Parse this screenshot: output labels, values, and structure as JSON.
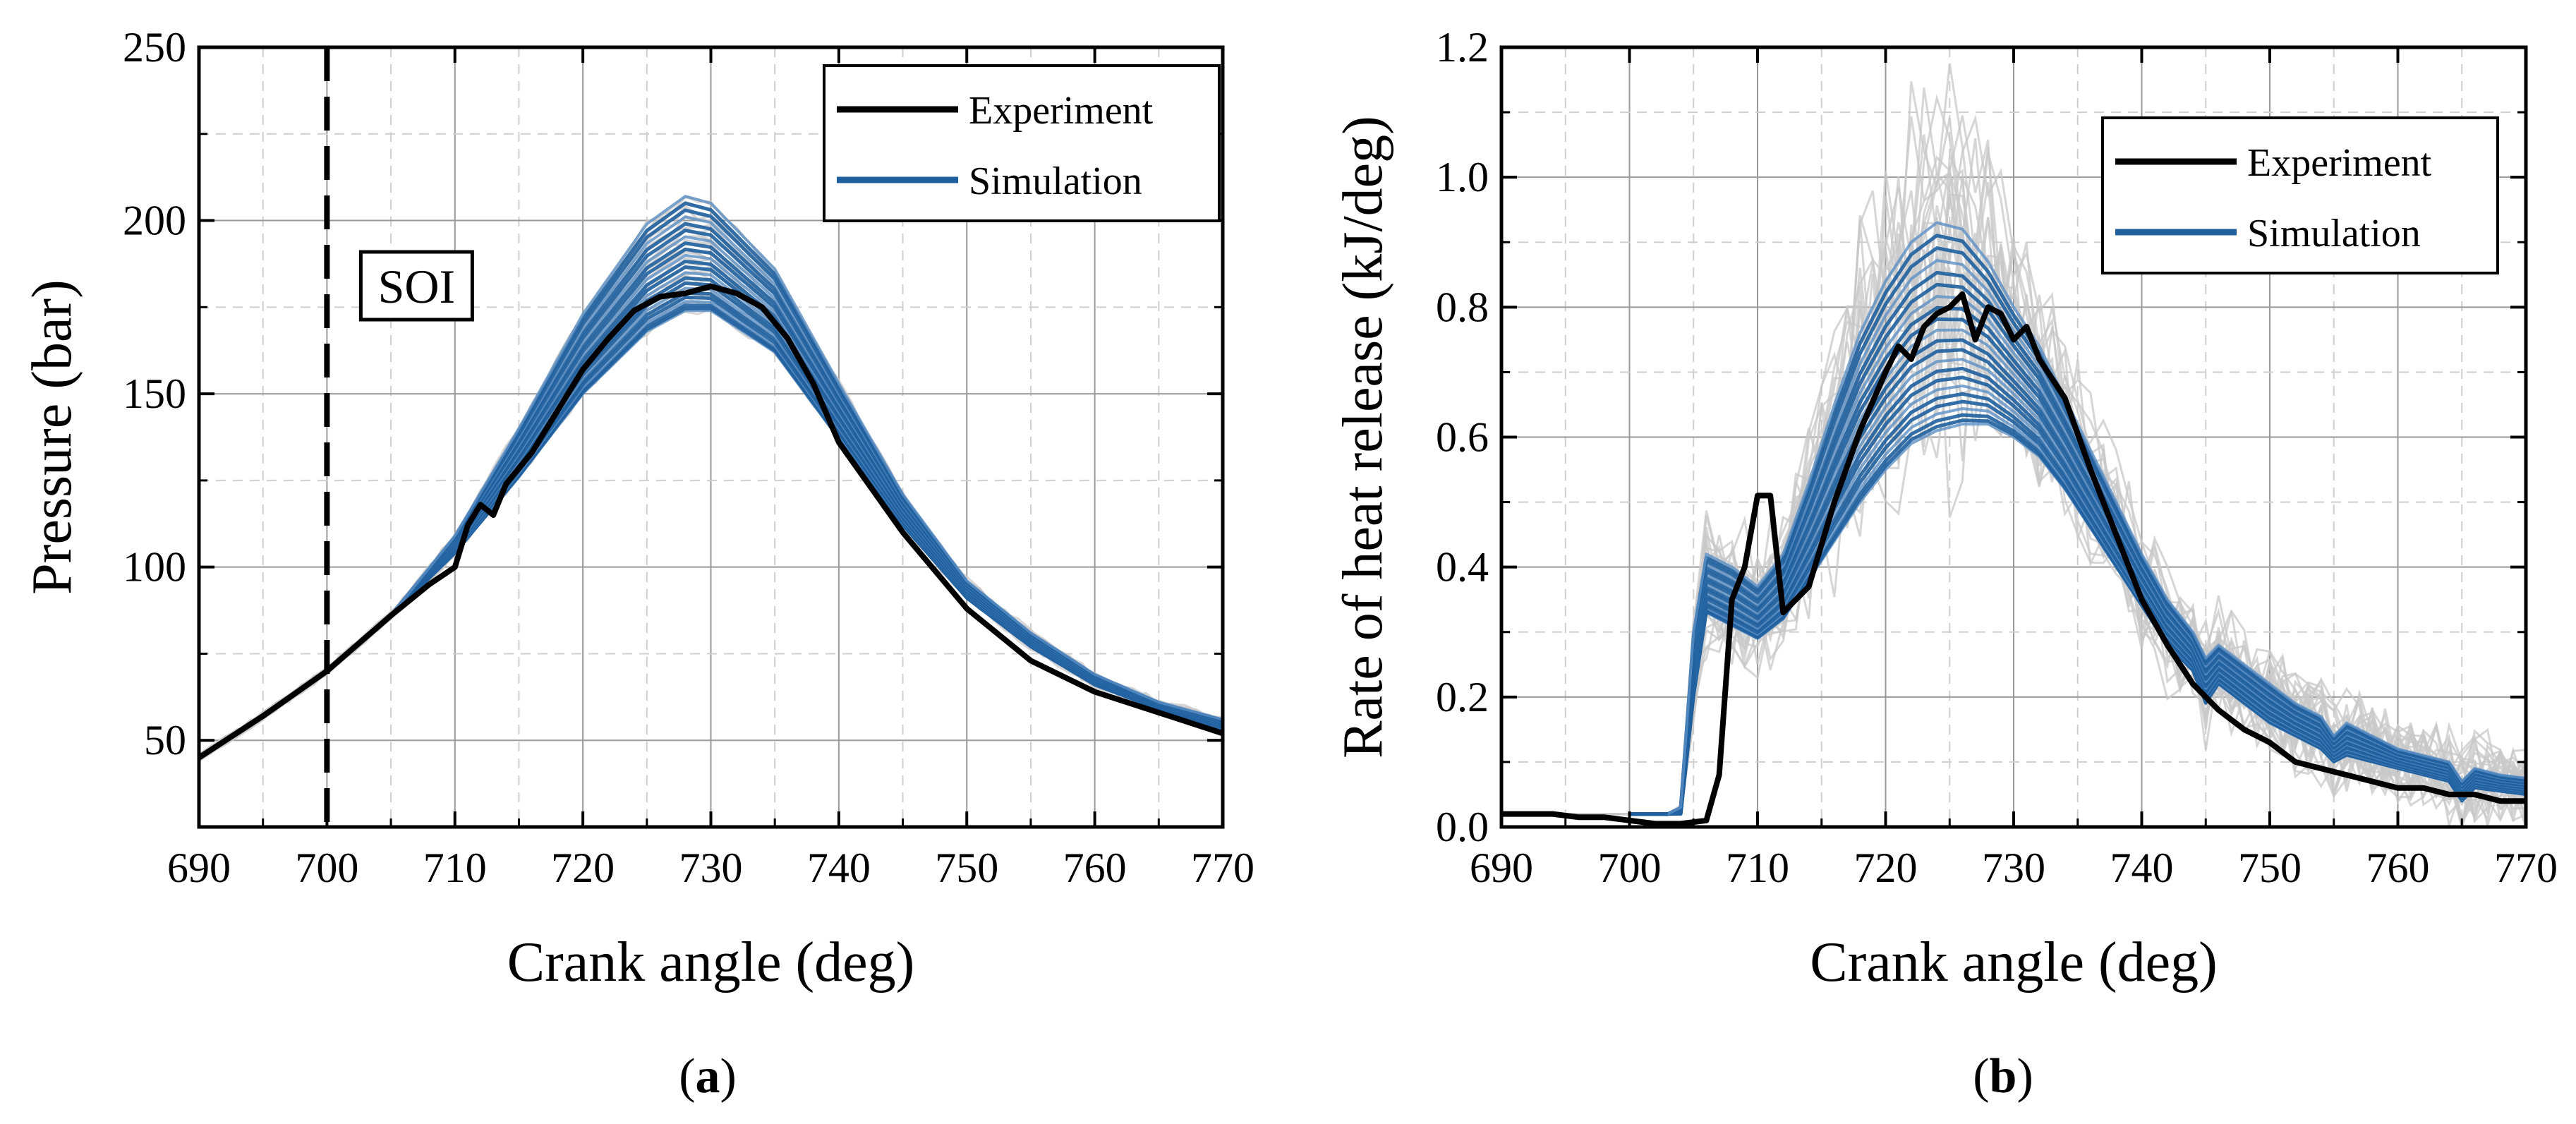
{
  "colors": {
    "experiment": "#000000",
    "simulation": "#1f5f9e",
    "simulation_light": "#5b8fc4",
    "envelope": "#c8c8c8",
    "grid": "#9a9a9a",
    "grid_minor": "#cfcfcf"
  },
  "panels": [
    {
      "label_open": "(",
      "label_letter": "a",
      "label_close": ")"
    },
    {
      "label_open": "(",
      "label_letter": "b",
      "label_close": ")"
    }
  ],
  "chart_data": [
    {
      "id": "a",
      "type": "line",
      "xlabel": "Crank angle (deg)",
      "ylabel": "Pressure (bar)",
      "xlim": [
        690,
        770
      ],
      "ylim": [
        25,
        250
      ],
      "xticks": [
        690,
        700,
        710,
        720,
        730,
        740,
        750,
        760,
        770
      ],
      "yticks": [
        50,
        100,
        150,
        200,
        250
      ],
      "grid": true,
      "legend": {
        "position": "top-right",
        "entries": [
          "Experiment",
          "Simulation"
        ]
      },
      "annotations": [
        {
          "text": "SOI",
          "x": 700,
          "style": "dashed-vertical-line"
        }
      ],
      "series": [
        {
          "name": "Experiment",
          "x": [
            690,
            695,
            700,
            705,
            708,
            710,
            711,
            712,
            713,
            714,
            716,
            718,
            720,
            722,
            724,
            726,
            728,
            730,
            732,
            734,
            736,
            738,
            740,
            745,
            750,
            755,
            760,
            765,
            770
          ],
          "y": [
            45,
            57,
            70,
            86,
            95,
            100,
            112,
            118,
            115,
            124,
            133,
            145,
            157,
            166,
            174,
            178,
            179,
            181,
            179,
            175,
            166,
            153,
            136,
            110,
            88,
            73,
            64,
            58,
            52
          ]
        },
        {
          "name": "Simulation (mean)",
          "x": [
            690,
            695,
            700,
            705,
            710,
            715,
            720,
            725,
            728,
            730,
            735,
            740,
            745,
            750,
            755,
            760,
            765,
            770
          ],
          "y": [
            45,
            57,
            70,
            86,
            106,
            132,
            160,
            180,
            186,
            185,
            170,
            142,
            115,
            93,
            79,
            68,
            60,
            55
          ]
        },
        {
          "name": "Simulation (high)",
          "x": [
            690,
            695,
            700,
            705,
            710,
            715,
            720,
            725,
            728,
            730,
            735,
            740,
            745,
            750,
            755,
            760,
            765,
            770
          ],
          "y": [
            45,
            57,
            70,
            86,
            109,
            140,
            173,
            199,
            207,
            205,
            186,
            153,
            121,
            96,
            81,
            69,
            61,
            56
          ]
        },
        {
          "name": "Simulation (low)",
          "x": [
            690,
            695,
            700,
            705,
            710,
            715,
            720,
            725,
            728,
            730,
            735,
            740,
            745,
            750,
            755,
            760,
            765,
            770
          ],
          "y": [
            45,
            57,
            70,
            86,
            104,
            126,
            150,
            168,
            174,
            174,
            162,
            137,
            112,
            91,
            77,
            66,
            59,
            53
          ]
        }
      ]
    },
    {
      "id": "b",
      "type": "line",
      "xlabel": "Crank angle (deg)",
      "ylabel": "Rate of heat release (kJ/deg)",
      "xlim": [
        690,
        770
      ],
      "ylim": [
        0.0,
        1.2
      ],
      "xticks": [
        690,
        700,
        710,
        720,
        730,
        740,
        750,
        760,
        770
      ],
      "yticks": [
        0.0,
        0.2,
        0.4,
        0.6,
        0.8,
        1.0,
        1.2
      ],
      "grid": true,
      "legend": {
        "position": "top-right",
        "entries": [
          "Experiment",
          "Simulation"
        ]
      },
      "series": [
        {
          "name": "Experiment",
          "x": [
            690,
            692,
            694,
            696,
            698,
            700,
            702,
            704,
            706,
            707,
            708,
            709,
            710,
            711,
            712,
            714,
            716,
            718,
            720,
            721,
            722,
            723,
            724,
            725,
            726,
            727,
            728,
            729,
            730,
            731,
            732,
            734,
            736,
            738,
            740,
            742,
            744,
            746,
            748,
            750,
            752,
            754,
            756,
            758,
            760,
            762,
            764,
            766,
            768,
            770
          ],
          "y": [
            0.02,
            0.02,
            0.02,
            0.015,
            0.015,
            0.01,
            0.005,
            0.005,
            0.01,
            0.08,
            0.35,
            0.4,
            0.51,
            0.51,
            0.33,
            0.37,
            0.5,
            0.61,
            0.7,
            0.74,
            0.72,
            0.77,
            0.79,
            0.8,
            0.82,
            0.75,
            0.8,
            0.79,
            0.75,
            0.77,
            0.72,
            0.66,
            0.55,
            0.45,
            0.35,
            0.28,
            0.22,
            0.18,
            0.15,
            0.13,
            0.1,
            0.09,
            0.08,
            0.07,
            0.06,
            0.06,
            0.05,
            0.05,
            0.04,
            0.04
          ]
        },
        {
          "name": "Simulation (mean)",
          "x": [
            700,
            703,
            704,
            705,
            706,
            708,
            710,
            712,
            714,
            716,
            718,
            720,
            722,
            724,
            726,
            728,
            730,
            732,
            734,
            736,
            738,
            740,
            742,
            744,
            745,
            746,
            748,
            750,
            752,
            754,
            755,
            756,
            758,
            760,
            762,
            764,
            765,
            766,
            768,
            770
          ],
          "y": [
            0.02,
            0.02,
            0.03,
            0.25,
            0.38,
            0.35,
            0.32,
            0.36,
            0.44,
            0.53,
            0.61,
            0.66,
            0.7,
            0.72,
            0.72,
            0.71,
            0.68,
            0.64,
            0.58,
            0.51,
            0.44,
            0.37,
            0.31,
            0.27,
            0.22,
            0.25,
            0.22,
            0.19,
            0.17,
            0.15,
            0.12,
            0.14,
            0.13,
            0.11,
            0.1,
            0.09,
            0.06,
            0.08,
            0.07,
            0.065
          ]
        },
        {
          "name": "Simulation (high)",
          "x": [
            700,
            703,
            704,
            705,
            706,
            708,
            710,
            712,
            714,
            716,
            718,
            720,
            722,
            724,
            726,
            728,
            730,
            732,
            734,
            736,
            738,
            740,
            742,
            744,
            745,
            746,
            748,
            750,
            752,
            754,
            755,
            756,
            758,
            760,
            762,
            764,
            765,
            766,
            768,
            770
          ],
          "y": [
            0.02,
            0.02,
            0.03,
            0.3,
            0.42,
            0.4,
            0.37,
            0.42,
            0.53,
            0.65,
            0.76,
            0.84,
            0.9,
            0.93,
            0.92,
            0.87,
            0.8,
            0.74,
            0.66,
            0.58,
            0.5,
            0.42,
            0.35,
            0.3,
            0.26,
            0.28,
            0.25,
            0.22,
            0.19,
            0.17,
            0.14,
            0.16,
            0.14,
            0.12,
            0.11,
            0.1,
            0.07,
            0.09,
            0.08,
            0.075
          ]
        },
        {
          "name": "Simulation (low)",
          "x": [
            700,
            703,
            704,
            705,
            706,
            708,
            710,
            712,
            714,
            716,
            718,
            720,
            722,
            724,
            726,
            728,
            730,
            732,
            734,
            736,
            738,
            740,
            742,
            744,
            745,
            746,
            748,
            750,
            752,
            754,
            755,
            756,
            758,
            760,
            762,
            764,
            765,
            766,
            768,
            770
          ],
          "y": [
            0.02,
            0.02,
            0.02,
            0.2,
            0.33,
            0.31,
            0.29,
            0.32,
            0.38,
            0.44,
            0.5,
            0.55,
            0.59,
            0.61,
            0.62,
            0.62,
            0.6,
            0.57,
            0.52,
            0.46,
            0.4,
            0.34,
            0.28,
            0.24,
            0.19,
            0.22,
            0.19,
            0.16,
            0.14,
            0.12,
            0.1,
            0.11,
            0.1,
            0.09,
            0.08,
            0.07,
            0.04,
            0.06,
            0.055,
            0.05
          ]
        }
      ]
    }
  ]
}
